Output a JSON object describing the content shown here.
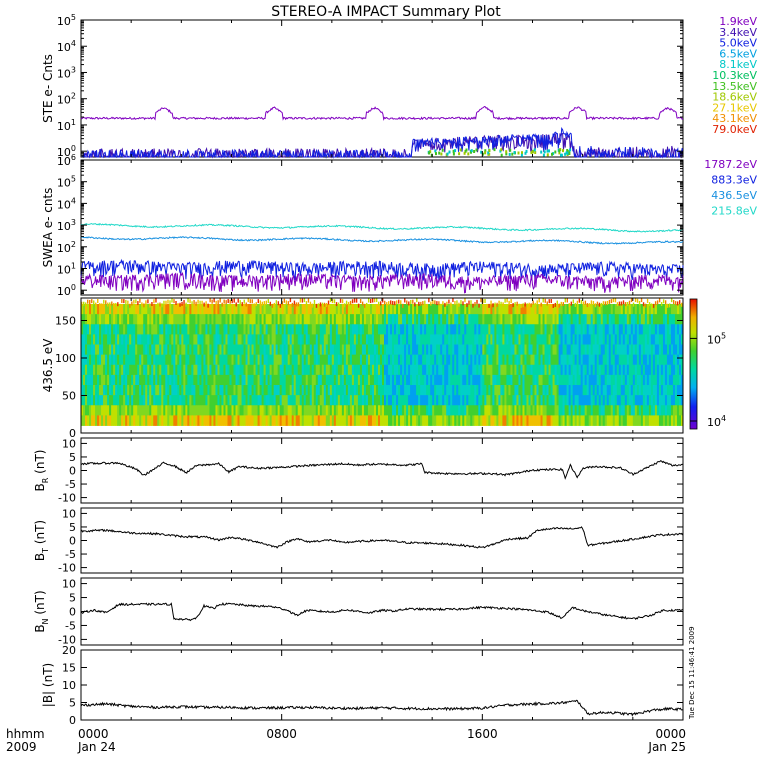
{
  "title": "STEREO-A IMPACT Summary Plot",
  "time_axis": {
    "corner_top": "hhmm",
    "corner_bottom": "2009",
    "ticks": [
      {
        "hhmm": "0000",
        "date": "Jan 24",
        "hours": 0
      },
      {
        "hhmm": "0800",
        "date": "",
        "hours": 8
      },
      {
        "hhmm": "1600",
        "date": "",
        "hours": 16
      },
      {
        "hhmm": "0000",
        "date": "Jan 25",
        "hours": 24
      }
    ]
  },
  "side_stamp": "Tue Dec 15 11:46:41 2009",
  "chart_data": [
    {
      "type": "line",
      "panel": "ste",
      "ylabel": "STE e- Cnts",
      "yscale": "log",
      "ylim": [
        0.6,
        100000
      ],
      "yticks": [
        {
          "v": 1,
          "b": "10",
          "e": "0"
        },
        {
          "v": 10,
          "b": "10",
          "e": "1"
        },
        {
          "v": 100,
          "b": "10",
          "e": "2"
        },
        {
          "v": 1000,
          "b": "10",
          "e": "3"
        },
        {
          "v": 10000,
          "b": "10",
          "e": "4"
        },
        {
          "v": 100000,
          "b": "10",
          "e": "5"
        }
      ],
      "series": [
        {
          "name": "1.9keV",
          "color": "#8000c0",
          "baseline": 18,
          "peaks": [
            {
              "x": 3.3,
              "y": 45
            },
            {
              "x": 7.7,
              "y": 45
            },
            {
              "x": 11.7,
              "y": 45
            },
            {
              "x": 16.1,
              "y": 48
            },
            {
              "x": 19.8,
              "y": 48
            },
            {
              "x": 23.4,
              "y": 45
            }
          ]
        },
        {
          "name": "3.4keV",
          "color": "#4010b0",
          "baseline": 0.8,
          "peaks": [
            {
              "x": 19.2,
              "y": 2
            }
          ]
        },
        {
          "name": "5.0keV",
          "color": "#1020e0",
          "baseline": 0.7,
          "peaks": [
            {
              "x": 14.0,
              "y": 2
            },
            {
              "x": 17.5,
              "y": 3
            },
            {
              "x": 19.2,
              "y": 5
            }
          ]
        },
        {
          "name": "6.5keV",
          "color": "#00a0e0"
        },
        {
          "name": "8.1keV",
          "color": "#00c8c8"
        },
        {
          "name": "10.3keV",
          "color": "#00c060"
        },
        {
          "name": "13.5keV",
          "color": "#40c020"
        },
        {
          "name": "18.6keV",
          "color": "#a0c800"
        },
        {
          "name": "27.1keV",
          "color": "#e8c800"
        },
        {
          "name": "43.1keV",
          "color": "#f09000"
        },
        {
          "name": "79.0keV",
          "color": "#e02000"
        }
      ]
    },
    {
      "type": "line",
      "panel": "swea",
      "ylabel": "SWEA e- cnts",
      "yscale": "log",
      "ylim": [
        0.6,
        1000000
      ],
      "yticks": [
        {
          "v": 1,
          "b": "10",
          "e": "0"
        },
        {
          "v": 10,
          "b": "10",
          "e": "1"
        },
        {
          "v": 100,
          "b": "10",
          "e": "2"
        },
        {
          "v": 1000,
          "b": "10",
          "e": "3"
        },
        {
          "v": 10000,
          "b": "10",
          "e": "4"
        },
        {
          "v": 100000,
          "b": "10",
          "e": "5"
        },
        {
          "v": 1000000,
          "b": "10",
          "e": "6"
        }
      ],
      "series": [
        {
          "name": "1787.2eV",
          "color": "#8000c0",
          "start": 3,
          "end": 2.5
        },
        {
          "name": "883.3eV",
          "color": "#1020e0",
          "start": 12,
          "end": 9
        },
        {
          "name": "436.5eV",
          "color": "#1890e0",
          "start": 260,
          "end": 150
        },
        {
          "name": "215.8eV",
          "color": "#20d8c8",
          "start": 1000,
          "end": 550
        }
      ]
    },
    {
      "type": "heatmap",
      "panel": "pad",
      "ylabel": "436.5 eV",
      "ylim": [
        0,
        180
      ],
      "yticks": [
        0,
        50,
        100,
        150
      ],
      "colorbar": {
        "min": 8000,
        "max": 300000,
        "scale": "log",
        "ticks": [
          {
            "v": 10000,
            "b": "10",
            "e": "4"
          },
          {
            "v": 100000,
            "b": "10",
            "e": "5"
          }
        ]
      }
    },
    {
      "type": "line",
      "panel": "br",
      "ylabel_main": "B",
      "ylabel_sub": "R",
      "ylabel_unit": " (nT)",
      "ylim": [
        -12,
        12
      ],
      "yticks": [
        -10,
        -5,
        0,
        5,
        10
      ],
      "color": "#000000",
      "points": [
        [
          0,
          2.5
        ],
        [
          1.5,
          2.8
        ],
        [
          2.2,
          0.5
        ],
        [
          2.5,
          -1.8
        ],
        [
          3,
          1
        ],
        [
          3.3,
          2.8
        ],
        [
          3.7,
          1.8
        ],
        [
          4.2,
          -0.8
        ],
        [
          4.6,
          1.8
        ],
        [
          5.5,
          2.5
        ],
        [
          5.9,
          -0.6
        ],
        [
          6.3,
          1.5
        ],
        [
          7,
          0.8
        ],
        [
          8,
          1.2
        ],
        [
          9,
          1.8
        ],
        [
          9.8,
          2.2
        ],
        [
          10.4,
          2.5
        ],
        [
          11,
          2
        ],
        [
          11.6,
          2.3
        ],
        [
          12.4,
          2.2
        ],
        [
          13,
          2
        ],
        [
          13.6,
          2.5
        ],
        [
          13.7,
          -0.7
        ],
        [
          14.5,
          -1.1
        ],
        [
          15.5,
          -1.2
        ],
        [
          16.3,
          -1.1
        ],
        [
          16.9,
          -1.6
        ],
        [
          17.6,
          -0.6
        ],
        [
          18,
          0.2
        ],
        [
          19.2,
          0.4
        ],
        [
          19.3,
          -3
        ],
        [
          19.5,
          2
        ],
        [
          19.8,
          -2.5
        ],
        [
          20,
          0.8
        ],
        [
          20.5,
          1.5
        ],
        [
          21.5,
          1
        ],
        [
          22,
          -1.4
        ],
        [
          22.6,
          1.2
        ],
        [
          23.1,
          3.5
        ],
        [
          23.6,
          1.8
        ],
        [
          24,
          2.2
        ]
      ]
    },
    {
      "type": "line",
      "panel": "bt",
      "ylabel_main": "B",
      "ylabel_sub": "T",
      "ylabel_unit": " (nT)",
      "ylim": [
        -12,
        12
      ],
      "yticks": [
        -10,
        -5,
        0,
        5,
        10
      ],
      "color": "#000000",
      "points": [
        [
          0,
          3.5
        ],
        [
          1,
          3.8
        ],
        [
          2,
          2.8
        ],
        [
          3,
          2.5
        ],
        [
          4,
          1.5
        ],
        [
          5,
          1.2
        ],
        [
          5.5,
          0.2
        ],
        [
          6,
          1.2
        ],
        [
          7,
          -0.4
        ],
        [
          7.8,
          -2.5
        ],
        [
          8.2,
          -0.6
        ],
        [
          8.6,
          0.8
        ],
        [
          9,
          -0.5
        ],
        [
          10,
          0.2
        ],
        [
          10.4,
          -0.8
        ],
        [
          11,
          -0.4
        ],
        [
          12,
          0.1
        ],
        [
          13,
          -0.8
        ],
        [
          14,
          -1
        ],
        [
          15,
          -1.6
        ],
        [
          16,
          -2.6
        ],
        [
          16.5,
          -1.2
        ],
        [
          17,
          0.5
        ],
        [
          17.8,
          0.9
        ],
        [
          18.2,
          3.8
        ],
        [
          19,
          4.5
        ],
        [
          19.6,
          4.3
        ],
        [
          20,
          4.8
        ],
        [
          20.2,
          -1.8
        ],
        [
          21,
          -0.8
        ],
        [
          22,
          0.5
        ],
        [
          23,
          2
        ],
        [
          24,
          2.5
        ]
      ]
    },
    {
      "type": "line",
      "panel": "bn",
      "ylabel_main": "B",
      "ylabel_sub": "N",
      "ylabel_unit": " (nT)",
      "ylim": [
        -12,
        12
      ],
      "yticks": [
        -10,
        -5,
        0,
        5,
        10
      ],
      "color": "#000000",
      "points": [
        [
          0,
          -0.5
        ],
        [
          0.5,
          0.5
        ],
        [
          1,
          -0.4
        ],
        [
          1.5,
          2.5
        ],
        [
          2.5,
          2.6
        ],
        [
          3.6,
          2.6
        ],
        [
          3.7,
          -2.5
        ],
        [
          4.3,
          -3
        ],
        [
          4.6,
          -2.4
        ],
        [
          4.9,
          2
        ],
        [
          5.3,
          1
        ],
        [
          5.5,
          2.6
        ],
        [
          6,
          2.7
        ],
        [
          6.8,
          2
        ],
        [
          7.6,
          1.8
        ],
        [
          8.2,
          0.6
        ],
        [
          8.6,
          -1.4
        ],
        [
          9,
          0.4
        ],
        [
          10,
          -0.2
        ],
        [
          10.6,
          0.6
        ],
        [
          11.5,
          -0.5
        ],
        [
          12,
          0.4
        ],
        [
          12.5,
          0.2
        ],
        [
          13,
          0.9
        ],
        [
          14,
          0.8
        ],
        [
          15,
          0.8
        ],
        [
          16,
          1.5
        ],
        [
          17,
          1.1
        ],
        [
          17.8,
          0.6
        ],
        [
          18.6,
          -0.2
        ],
        [
          19.2,
          -2.4
        ],
        [
          19.6,
          1.5
        ],
        [
          20,
          0.3
        ],
        [
          21,
          -1.4
        ],
        [
          22,
          -2.6
        ],
        [
          22.7,
          -1.4
        ],
        [
          23.2,
          0.4
        ],
        [
          24,
          0.5
        ]
      ]
    },
    {
      "type": "line",
      "panel": "bmag",
      "ylabel": "|B| (nT)",
      "ylim": [
        0,
        20
      ],
      "yticks": [
        0,
        5,
        10,
        15,
        20
      ],
      "color": "#000000",
      "points": [
        [
          0,
          4.2
        ],
        [
          1,
          4.6
        ],
        [
          2,
          3.9
        ],
        [
          3,
          3.6
        ],
        [
          4,
          3.8
        ],
        [
          5,
          3.6
        ],
        [
          6,
          3.6
        ],
        [
          7,
          3.4
        ],
        [
          8,
          3.5
        ],
        [
          9,
          3.6
        ],
        [
          10,
          3.4
        ],
        [
          11,
          3.3
        ],
        [
          12,
          3.5
        ],
        [
          13,
          3.3
        ],
        [
          14,
          3.2
        ],
        [
          15,
          3.2
        ],
        [
          16,
          3.4
        ],
        [
          17,
          4.3
        ],
        [
          18,
          4.6
        ],
        [
          19,
          4.8
        ],
        [
          19.8,
          5.4
        ],
        [
          20.2,
          1.8
        ],
        [
          21,
          2.2
        ],
        [
          22,
          1.6
        ],
        [
          22.8,
          2.8
        ],
        [
          23.4,
          3.2
        ],
        [
          24,
          3
        ]
      ]
    }
  ]
}
